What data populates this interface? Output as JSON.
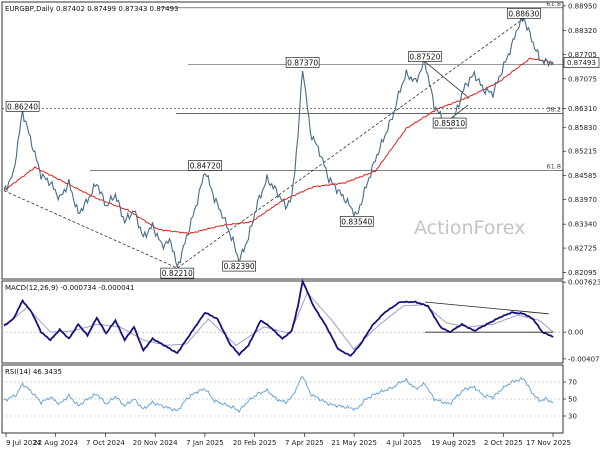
{
  "symbol_header": "EURGBP,Daily  0.87402 0.87499 0.87343 0.87493",
  "watermark": "ActionForex",
  "colors": {
    "price": "#456c8a",
    "ma": "#e02020",
    "macd": "#14147a",
    "signal": "#9aa0c8",
    "rsi": "#6ba6d8",
    "dash": "#333333",
    "fib": "#333333"
  },
  "chart_data": [
    {
      "type": "line",
      "name": "price",
      "x_labels": [
        "9 Jul 2024",
        "22 Aug 2024",
        "7 Oct 2024",
        "20 Nov 2024",
        "7 Jan 2025",
        "20 Feb 2025",
        "7 Apr 2025",
        "21 May 2025",
        "4 Jul 2025",
        "19 Aug 2025",
        "2 Oct 2025",
        "17 Nov 2025"
      ],
      "y_ticks": [
        "0.88950",
        "0.88320",
        "0.87705",
        "0.87075",
        "0.86310",
        "0.85830",
        "0.85215",
        "0.84585",
        "0.83970",
        "0.83340",
        "0.82725",
        "0.82095"
      ],
      "ylim": [
        0.8193,
        0.8905
      ],
      "last_price": "0.87493",
      "price_labels": [
        {
          "t": "0.86240",
          "bar": 12,
          "v": 0.8624
        },
        {
          "t": "0.82210",
          "bar": 112,
          "v": 0.8221
        },
        {
          "t": "0.84720",
          "bar": 130,
          "v": 0.8472
        },
        {
          "t": "0.82390",
          "bar": 152,
          "v": 0.8239
        },
        {
          "t": "0.87370",
          "bar": 193,
          "v": 0.8737
        },
        {
          "t": "0.83540",
          "bar": 228,
          "v": 0.8354
        },
        {
          "t": "0.87520",
          "bar": 272,
          "v": 0.8752
        },
        {
          "t": "0.85810",
          "bar": 288,
          "v": 0.8581
        },
        {
          "t": "0.88630",
          "bar": 336,
          "v": 0.8863
        }
      ],
      "fib_levels": [
        {
          "label": "61.8",
          "value": 0.889
        },
        {
          "label": "38.2",
          "value": 0.8618
        },
        {
          "label": "61.8",
          "value": 0.8472
        }
      ],
      "price_path": [
        [
          0,
          0.8419
        ],
        [
          6,
          0.8462
        ],
        [
          12,
          0.8624
        ],
        [
          18,
          0.854
        ],
        [
          24,
          0.846
        ],
        [
          30,
          0.844
        ],
        [
          36,
          0.84
        ],
        [
          42,
          0.844
        ],
        [
          48,
          0.836
        ],
        [
          54,
          0.8395
        ],
        [
          60,
          0.844
        ],
        [
          66,
          0.838
        ],
        [
          72,
          0.841
        ],
        [
          78,
          0.834
        ],
        [
          84,
          0.837
        ],
        [
          90,
          0.83
        ],
        [
          96,
          0.833
        ],
        [
          102,
          0.828
        ],
        [
          108,
          0.829
        ],
        [
          112,
          0.8221
        ],
        [
          118,
          0.83
        ],
        [
          124,
          0.838
        ],
        [
          130,
          0.8472
        ],
        [
          136,
          0.84
        ],
        [
          142,
          0.835
        ],
        [
          148,
          0.829
        ],
        [
          152,
          0.8239
        ],
        [
          158,
          0.83
        ],
        [
          164,
          0.839
        ],
        [
          170,
          0.845
        ],
        [
          176,
          0.842
        ],
        [
          182,
          0.838
        ],
        [
          186,
          0.84
        ],
        [
          190,
          0.856
        ],
        [
          193,
          0.8737
        ],
        [
          198,
          0.857
        ],
        [
          204,
          0.852
        ],
        [
          210,
          0.845
        ],
        [
          216,
          0.842
        ],
        [
          222,
          0.839
        ],
        [
          228,
          0.8354
        ],
        [
          234,
          0.843
        ],
        [
          240,
          0.85
        ],
        [
          246,
          0.856
        ],
        [
          252,
          0.862
        ],
        [
          256,
          0.868
        ],
        [
          260,
          0.872
        ],
        [
          266,
          0.87
        ],
        [
          272,
          0.8752
        ],
        [
          278,
          0.864
        ],
        [
          284,
          0.86
        ],
        [
          288,
          0.8581
        ],
        [
          292,
          0.862
        ],
        [
          298,
          0.869
        ],
        [
          304,
          0.872
        ],
        [
          310,
          0.868
        ],
        [
          316,
          0.867
        ],
        [
          322,
          0.873
        ],
        [
          328,
          0.879
        ],
        [
          332,
          0.884
        ],
        [
          336,
          0.8863
        ],
        [
          341,
          0.881
        ],
        [
          346,
          0.876
        ],
        [
          350,
          0.875
        ],
        [
          355,
          0.8749
        ]
      ],
      "ma_path": [
        [
          0,
          0.842
        ],
        [
          20,
          0.848
        ],
        [
          40,
          0.844
        ],
        [
          60,
          0.84
        ],
        [
          80,
          0.837
        ],
        [
          100,
          0.832
        ],
        [
          120,
          0.831
        ],
        [
          140,
          0.833
        ],
        [
          160,
          0.834
        ],
        [
          180,
          0.8395
        ],
        [
          200,
          0.843
        ],
        [
          220,
          0.844
        ],
        [
          240,
          0.847
        ],
        [
          260,
          0.858
        ],
        [
          280,
          0.863
        ],
        [
          300,
          0.866
        ],
        [
          320,
          0.87
        ],
        [
          340,
          0.876
        ],
        [
          355,
          0.875
        ]
      ]
    },
    {
      "type": "line",
      "name": "macd",
      "title": "MACD(12,26,9) -0.000734 -0.000041",
      "y_ticks": [
        "0.007623",
        "0.00",
        "-0.004073"
      ],
      "ylim": [
        -0.0047,
        0.0078
      ],
      "macd_path": [
        [
          0,
          0.001
        ],
        [
          6,
          0.002
        ],
        [
          12,
          0.0048
        ],
        [
          18,
          0.003
        ],
        [
          24,
          0.0
        ],
        [
          30,
          -0.0012
        ],
        [
          36,
          0.0004
        ],
        [
          42,
          -0.001
        ],
        [
          48,
          0.0012
        ],
        [
          54,
          -0.0005
        ],
        [
          60,
          0.0022
        ],
        [
          66,
          -0.0002
        ],
        [
          72,
          0.0018
        ],
        [
          78,
          -0.0012
        ],
        [
          84,
          0.0008
        ],
        [
          90,
          -0.0028
        ],
        [
          96,
          -0.001
        ],
        [
          102,
          -0.0018
        ],
        [
          112,
          -0.0032
        ],
        [
          120,
          -0.0004
        ],
        [
          130,
          0.003
        ],
        [
          138,
          0.002
        ],
        [
          146,
          -0.0018
        ],
        [
          152,
          -0.0034
        ],
        [
          158,
          -0.002
        ],
        [
          166,
          0.0018
        ],
        [
          172,
          0.0008
        ],
        [
          180,
          -0.001
        ],
        [
          186,
          0.0002
        ],
        [
          190,
          0.004
        ],
        [
          193,
          0.0078
        ],
        [
          200,
          0.004
        ],
        [
          208,
          0.001
        ],
        [
          216,
          -0.0026
        ],
        [
          224,
          -0.0036
        ],
        [
          230,
          -0.002
        ],
        [
          238,
          0.001
        ],
        [
          246,
          0.003
        ],
        [
          256,
          0.0046
        ],
        [
          266,
          0.0046
        ],
        [
          274,
          0.004
        ],
        [
          282,
          0.0008
        ],
        [
          288,
          0.0
        ],
        [
          296,
          0.0012
        ],
        [
          304,
          0.0002
        ],
        [
          312,
          0.0012
        ],
        [
          320,
          0.0022
        ],
        [
          328,
          0.003
        ],
        [
          336,
          0.0028
        ],
        [
          342,
          0.002
        ],
        [
          348,
          0.0
        ],
        [
          355,
          -0.0007
        ]
      ],
      "signal_path": [
        [
          0,
          0.0008
        ],
        [
          15,
          0.0038
        ],
        [
          30,
          0.0
        ],
        [
          45,
          0.0002
        ],
        [
          60,
          0.0012
        ],
        [
          75,
          0.0008
        ],
        [
          90,
          -0.0012
        ],
        [
          105,
          -0.002
        ],
        [
          118,
          -0.0018
        ],
        [
          132,
          0.002
        ],
        [
          150,
          -0.002
        ],
        [
          168,
          0.0008
        ],
        [
          185,
          -0.0002
        ],
        [
          196,
          0.006
        ],
        [
          212,
          0.0018
        ],
        [
          226,
          -0.0026
        ],
        [
          242,
          0.001
        ],
        [
          258,
          0.004
        ],
        [
          272,
          0.0042
        ],
        [
          286,
          0.0014
        ],
        [
          300,
          0.0008
        ],
        [
          316,
          0.0012
        ],
        [
          332,
          0.0026
        ],
        [
          346,
          0.0018
        ],
        [
          355,
          0.0
        ]
      ]
    },
    {
      "type": "line",
      "name": "rsi",
      "title": "RSI(14) 46.3435",
      "y_ticks": [
        "70",
        "50",
        "30"
      ],
      "ylim": [
        10,
        90
      ],
      "rsi_path": [
        [
          0,
          48
        ],
        [
          8,
          55
        ],
        [
          12,
          68
        ],
        [
          18,
          58
        ],
        [
          24,
          46
        ],
        [
          30,
          52
        ],
        [
          36,
          44
        ],
        [
          42,
          54
        ],
        [
          48,
          42
        ],
        [
          54,
          50
        ],
        [
          60,
          56
        ],
        [
          66,
          44
        ],
        [
          72,
          53
        ],
        [
          78,
          42
        ],
        [
          84,
          50
        ],
        [
          90,
          38
        ],
        [
          96,
          46
        ],
        [
          102,
          42
        ],
        [
          112,
          36
        ],
        [
          118,
          50
        ],
        [
          124,
          58
        ],
        [
          130,
          62
        ],
        [
          136,
          48
        ],
        [
          142,
          44
        ],
        [
          148,
          40
        ],
        [
          152,
          36
        ],
        [
          158,
          48
        ],
        [
          164,
          56
        ],
        [
          170,
          60
        ],
        [
          176,
          50
        ],
        [
          182,
          46
        ],
        [
          186,
          52
        ],
        [
          190,
          66
        ],
        [
          193,
          78
        ],
        [
          198,
          56
        ],
        [
          204,
          50
        ],
        [
          210,
          44
        ],
        [
          216,
          42
        ],
        [
          222,
          40
        ],
        [
          228,
          38
        ],
        [
          234,
          50
        ],
        [
          240,
          56
        ],
        [
          246,
          60
        ],
        [
          252,
          64
        ],
        [
          256,
          70
        ],
        [
          260,
          72
        ],
        [
          266,
          62
        ],
        [
          272,
          68
        ],
        [
          278,
          50
        ],
        [
          284,
          46
        ],
        [
          288,
          44
        ],
        [
          292,
          52
        ],
        [
          298,
          62
        ],
        [
          304,
          64
        ],
        [
          310,
          54
        ],
        [
          316,
          52
        ],
        [
          322,
          62
        ],
        [
          328,
          70
        ],
        [
          332,
          72
        ],
        [
          336,
          74
        ],
        [
          341,
          58
        ],
        [
          346,
          48
        ],
        [
          350,
          50
        ],
        [
          355,
          46
        ]
      ]
    }
  ]
}
